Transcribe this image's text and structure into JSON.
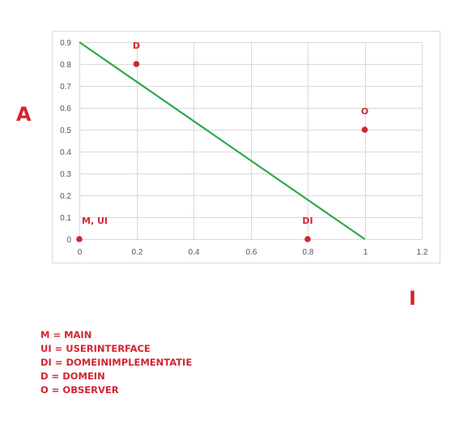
{
  "chart_data": {
    "type": "scatter",
    "title": "",
    "xlabel": "I",
    "ylabel": "A",
    "xlim": [
      0,
      1.2
    ],
    "ylim": [
      0,
      0.9
    ],
    "x_ticks": [
      "0",
      "0.2",
      "0.4",
      "0.6",
      "0.8",
      "1",
      "1.2"
    ],
    "y_ticks": [
      "0",
      "0.1",
      "0.2",
      "0.3",
      "0.4",
      "0.5",
      "0.6",
      "0.7",
      "0.8",
      "0.9"
    ],
    "grid": true,
    "points": [
      {
        "label": "M, UI",
        "x": 0,
        "y": 0
      },
      {
        "label": "D",
        "x": 0.2,
        "y": 0.8
      },
      {
        "label": "DI",
        "x": 0.8,
        "y": 0
      },
      {
        "label": "O",
        "x": 1,
        "y": 0.5
      }
    ],
    "line": {
      "x": [
        0,
        1
      ],
      "y": [
        0.9,
        0
      ]
    },
    "colors": {
      "points": "#d22630",
      "line": "#2ea84a",
      "grid": "#d9d9d9"
    }
  },
  "legend": [
    "M = MAIN",
    "UI = USERINTERFACE",
    "DI = DOMEINIMPLEMENTATIE",
    "D = DOMEIN",
    "O = OBSERVER"
  ]
}
